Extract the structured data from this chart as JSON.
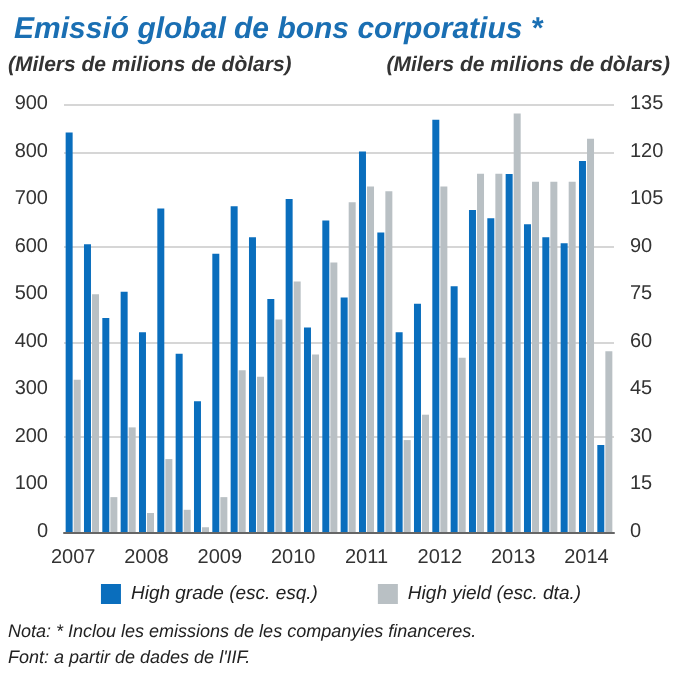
{
  "chart_data": {
    "type": "bar",
    "title": "Emissió global de bons corporatius *",
    "ylabel": "(Milers de milions de dòlars)",
    "y2label": "(Milers de milions de dòlars)",
    "categories": [
      "2007",
      null,
      null,
      null,
      "2008",
      null,
      null,
      null,
      "2009",
      null,
      null,
      null,
      "2010",
      null,
      null,
      null,
      "2011",
      null,
      null,
      null,
      "2012",
      null,
      null,
      null,
      "2013",
      null,
      null,
      null,
      "2014",
      null
    ],
    "series": [
      {
        "name": "High grade (esc. esq.)",
        "color": "#0a6ebd",
        "axis": "y",
        "values": [
          840,
          605,
          450,
          505,
          420,
          680,
          375,
          275,
          585,
          685,
          620,
          490,
          700,
          430,
          655,
          493,
          800,
          630,
          420,
          480,
          867,
          517,
          677,
          660,
          753,
          647,
          620,
          607,
          780,
          183
        ]
      },
      {
        "name": "High yield (esc. dta.)",
        "color": "#b9c0c4",
        "axis": "y2",
        "values": [
          48,
          75,
          11,
          33,
          6,
          23,
          7,
          1.5,
          11,
          51,
          49,
          67,
          79,
          56,
          85,
          104,
          109,
          107.5,
          29,
          37,
          109,
          55,
          113,
          113,
          132,
          110.5,
          110.5,
          110.5,
          124,
          57
        ]
      }
    ],
    "ylim": [
      0,
      900
    ],
    "yticks": [
      0,
      100,
      200,
      300,
      400,
      500,
      600,
      700,
      800,
      900
    ],
    "y2lim": [
      0,
      135
    ],
    "y2ticks": [
      0,
      15,
      30,
      45,
      60,
      75,
      90,
      105,
      120,
      135
    ],
    "grid": "y",
    "legend": "bottom",
    "annotations": [
      "Nota: * Inclou les emissions de les companyies financeres.",
      "Font: a partir de dades de l'IIF."
    ]
  }
}
